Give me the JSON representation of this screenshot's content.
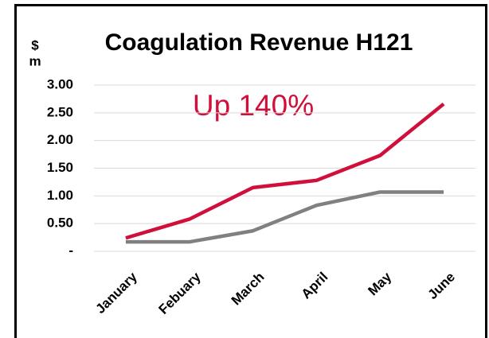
{
  "chart_data": {
    "type": "line",
    "title": "Coagulation Revenue H121",
    "y_label_lines": [
      "$",
      "m"
    ],
    "annotation": "Up 140%",
    "categories": [
      "January",
      "Febuary",
      "March",
      "April",
      "May",
      "June"
    ],
    "series": [
      {
        "color": "#d0103a",
        "values": [
          0.24,
          0.58,
          1.15,
          1.28,
          1.73,
          2.66
        ]
      },
      {
        "color": "#808080",
        "values": [
          0.17,
          0.17,
          0.37,
          0.83,
          1.07,
          1.07
        ]
      }
    ],
    "ylim": [
      0,
      3
    ],
    "yticks": [
      {
        "value": 0,
        "label": "-"
      },
      {
        "value": 0.5,
        "label": "0.50"
      },
      {
        "value": 1,
        "label": "1.00"
      },
      {
        "value": 1.5,
        "label": "1.50"
      },
      {
        "value": 2,
        "label": "2.00"
      },
      {
        "value": 2.5,
        "label": "2.50"
      },
      {
        "value": 3,
        "label": "3.00"
      }
    ],
    "grid": true
  }
}
